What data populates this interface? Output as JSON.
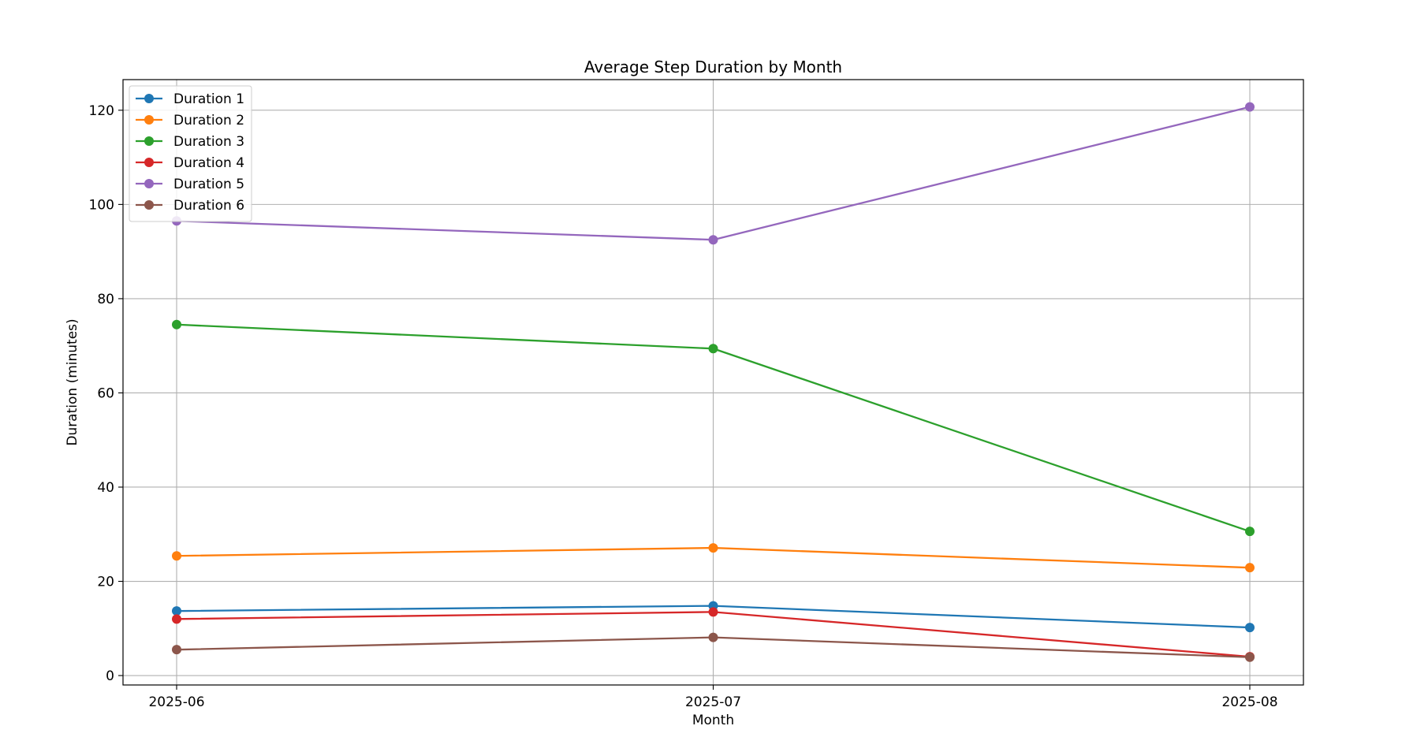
{
  "chart_data": {
    "type": "line",
    "title": "Average Step Duration by Month",
    "xlabel": "Month",
    "ylabel": "Duration (minutes)",
    "categories": [
      "2025-06",
      "2025-07",
      "2025-08"
    ],
    "ylim": [
      -2,
      126.5
    ],
    "yticks": [
      0,
      20,
      40,
      60,
      80,
      100,
      120
    ],
    "grid": true,
    "legend_position": "upper-left",
    "series": [
      {
        "name": "Duration 1",
        "color": "#1f77b4",
        "values": [
          13.7,
          14.8,
          10.2
        ]
      },
      {
        "name": "Duration 2",
        "color": "#ff7f0e",
        "values": [
          25.4,
          27.1,
          22.9
        ]
      },
      {
        "name": "Duration 3",
        "color": "#2ca02c",
        "values": [
          74.5,
          69.4,
          30.6
        ]
      },
      {
        "name": "Duration 4",
        "color": "#d62728",
        "values": [
          12.0,
          13.5,
          4.0
        ]
      },
      {
        "name": "Duration 5",
        "color": "#9467bd",
        "values": [
          96.5,
          92.5,
          120.7
        ]
      },
      {
        "name": "Duration 6",
        "color": "#8c564b",
        "values": [
          5.5,
          8.1,
          3.9
        ]
      }
    ]
  }
}
